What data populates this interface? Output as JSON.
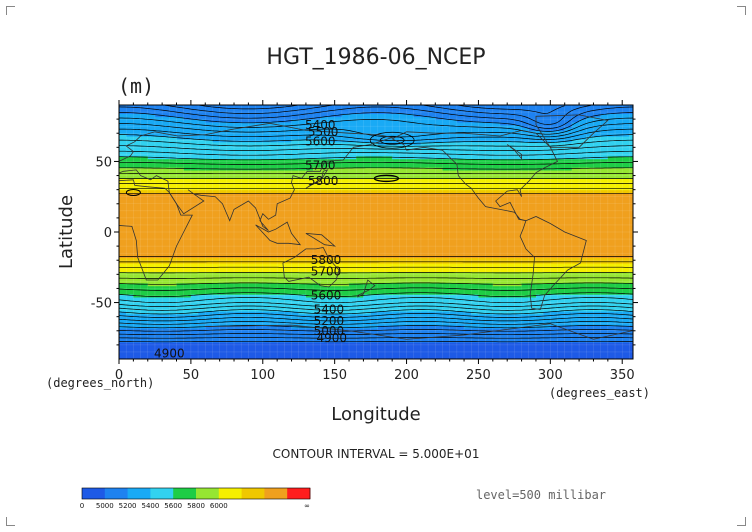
{
  "chart_data": {
    "type": "heatmap",
    "title": "HGT_1986-06_NCEP",
    "units": "(m)",
    "xlabel": "Longitude",
    "ylabel": "Latitude",
    "x_unit_note": "(degrees_east)",
    "x_origin_note": "(degrees_north)",
    "xlim": [
      0,
      357.5
    ],
    "ylim": [
      -90,
      90
    ],
    "x_ticks": [
      0,
      50,
      100,
      150,
      200,
      250,
      300,
      350
    ],
    "y_ticks": [
      50,
      0,
      -50
    ],
    "contour_interval_text": "CONTOUR INTERVAL = 5.000E+01",
    "level_text": "level=500 millibar",
    "contour_labels": [
      {
        "value": "5400",
        "lon": 140,
        "lat": 76
      },
      {
        "value": "5500",
        "lon": 142,
        "lat": 71
      },
      {
        "value": "5600",
        "lon": 140,
        "lat": 64
      },
      {
        "value": "5700",
        "lon": 140,
        "lat": 47
      },
      {
        "value": "5800",
        "lon": 142,
        "lat": 36
      },
      {
        "value": "5800",
        "lon": 144,
        "lat": -20
      },
      {
        "value": "5700",
        "lon": 144,
        "lat": -28
      },
      {
        "value": "5600",
        "lon": 144,
        "lat": -45
      },
      {
        "value": "5400",
        "lon": 146,
        "lat": -55
      },
      {
        "value": "5200",
        "lon": 146,
        "lat": -63
      },
      {
        "value": "5000",
        "lon": 146,
        "lat": -70
      },
      {
        "value": "4900",
        "lon": 148,
        "lat": -75
      },
      {
        "value": "4900",
        "lon": 35,
        "lat": -86
      }
    ],
    "colorbar": {
      "labels": [
        "0",
        "5000",
        "5200",
        "5400",
        "5600",
        "5800",
        "6000",
        "∞"
      ],
      "colors": [
        "#1e5ae6",
        "#1e82f0",
        "#19aaf5",
        "#32d2f0",
        "#1ecd46",
        "#96e632",
        "#f5f000",
        "#f0c800",
        "#f0a01e",
        "#ff1e1e"
      ]
    },
    "colors": {
      "band_lt_4900": "#1e5ae6",
      "band_4900_5100": "#1e82f0",
      "band_5100_5300": "#19aaf5",
      "band_5300_5500": "#32d2f0",
      "band_5500_5600": "#1ecd46",
      "band_5600_5700": "#96e632",
      "band_5700_5800": "#f5f000",
      "band_5800_5850": "#f0c800",
      "band_gt_5850": "#f0a01e"
    }
  }
}
